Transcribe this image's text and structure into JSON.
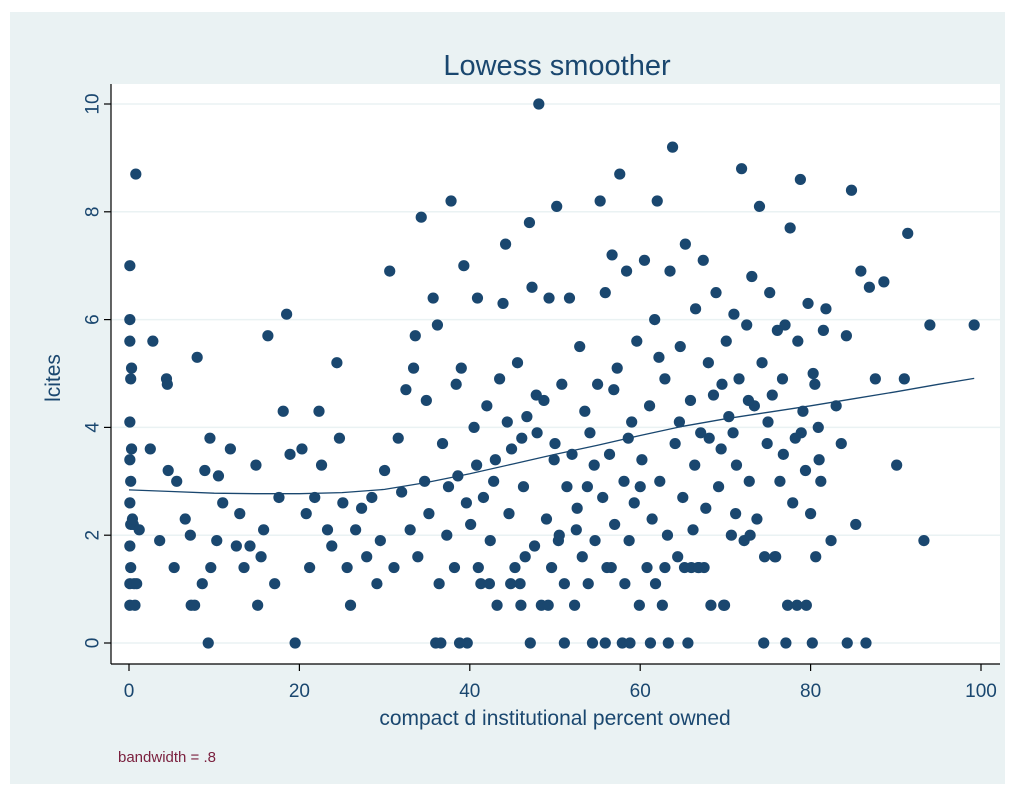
{
  "chart_data": {
    "type": "scatter",
    "title": "Lowess smoother",
    "xlabel": "compact d institutional percent owned",
    "ylabel": "lcites",
    "note": "bandwidth = .8",
    "xlim": [
      -2,
      101
    ],
    "ylim": [
      -0.3,
      10.2
    ],
    "xticks": [
      0,
      20,
      40,
      60,
      80,
      100
    ],
    "yticks": [
      0,
      2,
      4,
      6,
      8,
      10
    ],
    "grid": true,
    "colors": {
      "background": "#eaf2f3",
      "plot_region": "#ffffff",
      "marker": "#1a476f",
      "text": "#1a476f",
      "note_text": "#7a1f3d",
      "grid": "#eaf2f3"
    },
    "points": [
      [
        0.1,
        0.7
      ],
      [
        0.1,
        1.1
      ],
      [
        0.2,
        1.4
      ],
      [
        0.1,
        1.8
      ],
      [
        0.2,
        2.2
      ],
      [
        0.1,
        2.6
      ],
      [
        0.2,
        3.0
      ],
      [
        0.1,
        3.4
      ],
      [
        0.3,
        3.6
      ],
      [
        0.1,
        4.1
      ],
      [
        0.2,
        4.9
      ],
      [
        0.3,
        5.1
      ],
      [
        0.1,
        5.6
      ],
      [
        0.1,
        6.0
      ],
      [
        0.1,
        7.0
      ],
      [
        0.8,
        8.7
      ],
      [
        0.5,
        2.2
      ],
      [
        0.6,
        1.1
      ],
      [
        0.7,
        0.7
      ],
      [
        0.4,
        2.3
      ],
      [
        1.2,
        2.1
      ],
      [
        0.9,
        1.1
      ],
      [
        2.5,
        3.6
      ],
      [
        2.8,
        5.6
      ],
      [
        3.6,
        1.9
      ],
      [
        4.4,
        4.9
      ],
      [
        4.5,
        4.8
      ],
      [
        4.6,
        3.2
      ],
      [
        5.3,
        1.4
      ],
      [
        5.6,
        3.0
      ],
      [
        6.6,
        2.3
      ],
      [
        7.2,
        2.0
      ],
      [
        7.3,
        0.7
      ],
      [
        7.7,
        0.7
      ],
      [
        8.0,
        5.3
      ],
      [
        8.6,
        1.1
      ],
      [
        8.9,
        3.2
      ],
      [
        9.3,
        0.0
      ],
      [
        9.5,
        3.8
      ],
      [
        9.6,
        1.4
      ],
      [
        10.3,
        1.9
      ],
      [
        10.5,
        3.1
      ],
      [
        11.0,
        2.6
      ],
      [
        11.9,
        3.6
      ],
      [
        12.6,
        1.8
      ],
      [
        13.0,
        2.4
      ],
      [
        13.5,
        1.4
      ],
      [
        14.2,
        1.8
      ],
      [
        14.9,
        3.3
      ],
      [
        15.1,
        0.7
      ],
      [
        15.5,
        1.6
      ],
      [
        15.8,
        2.1
      ],
      [
        16.3,
        5.7
      ],
      [
        17.1,
        1.1
      ],
      [
        17.6,
        2.7
      ],
      [
        18.1,
        4.3
      ],
      [
        18.5,
        6.1
      ],
      [
        18.9,
        3.5
      ],
      [
        19.5,
        0.0
      ],
      [
        20.3,
        3.6
      ],
      [
        20.8,
        2.4
      ],
      [
        21.2,
        1.4
      ],
      [
        21.8,
        2.7
      ],
      [
        22.3,
        4.3
      ],
      [
        22.6,
        3.3
      ],
      [
        23.3,
        2.1
      ],
      [
        23.8,
        1.8
      ],
      [
        24.4,
        5.2
      ],
      [
        24.7,
        3.8
      ],
      [
        25.1,
        2.6
      ],
      [
        25.6,
        1.4
      ],
      [
        26.0,
        0.7
      ],
      [
        26.6,
        2.1
      ],
      [
        27.3,
        2.5
      ],
      [
        27.9,
        1.6
      ],
      [
        28.5,
        2.7
      ],
      [
        29.1,
        1.1
      ],
      [
        29.5,
        1.9
      ],
      [
        30.0,
        3.2
      ],
      [
        30.6,
        6.9
      ],
      [
        31.1,
        1.4
      ],
      [
        31.6,
        3.8
      ],
      [
        32.0,
        2.8
      ],
      [
        32.5,
        4.7
      ],
      [
        33.0,
        2.1
      ],
      [
        33.4,
        5.1
      ],
      [
        33.9,
        1.6
      ],
      [
        34.3,
        7.9
      ],
      [
        34.7,
        3.0
      ],
      [
        35.2,
        2.4
      ],
      [
        35.7,
        6.4
      ],
      [
        36.0,
        0.0
      ],
      [
        36.4,
        1.1
      ],
      [
        36.8,
        3.7
      ],
      [
        37.3,
        2.0
      ],
      [
        37.8,
        8.2
      ],
      [
        38.2,
        1.4
      ],
      [
        38.6,
        3.1
      ],
      [
        39.0,
        5.1
      ],
      [
        39.3,
        7.0
      ],
      [
        39.7,
        0.0
      ],
      [
        40.1,
        2.2
      ],
      [
        40.5,
        4.0
      ],
      [
        40.9,
        6.4
      ],
      [
        41.3,
        1.1
      ],
      [
        41.6,
        2.7
      ],
      [
        42.0,
        4.4
      ],
      [
        42.4,
        1.9
      ],
      [
        42.8,
        3.0
      ],
      [
        43.2,
        0.7
      ],
      [
        43.5,
        4.9
      ],
      [
        43.9,
        6.3
      ],
      [
        44.2,
        7.4
      ],
      [
        44.6,
        2.4
      ],
      [
        44.9,
        3.6
      ],
      [
        45.3,
        1.4
      ],
      [
        45.6,
        5.2
      ],
      [
        46.0,
        0.7
      ],
      [
        46.3,
        2.9
      ],
      [
        46.7,
        4.2
      ],
      [
        47.0,
        7.8
      ],
      [
        47.3,
        6.6
      ],
      [
        47.6,
        1.8
      ],
      [
        47.9,
        3.9
      ],
      [
        48.1,
        10.0
      ],
      [
        48.4,
        0.7
      ],
      [
        48.7,
        4.5
      ],
      [
        49.0,
        2.3
      ],
      [
        49.3,
        6.4
      ],
      [
        49.6,
        1.4
      ],
      [
        49.9,
        3.4
      ],
      [
        50.2,
        8.1
      ],
      [
        50.5,
        2.0
      ],
      [
        50.8,
        4.8
      ],
      [
        51.1,
        1.1
      ],
      [
        51.4,
        2.9
      ],
      [
        51.7,
        6.4
      ],
      [
        52.0,
        3.5
      ],
      [
        52.3,
        0.7
      ],
      [
        52.6,
        2.5
      ],
      [
        52.9,
        5.5
      ],
      [
        53.2,
        1.6
      ],
      [
        53.5,
        4.3
      ],
      [
        53.8,
        2.9
      ],
      [
        54.1,
        3.9
      ],
      [
        54.4,
        0.0
      ],
      [
        54.7,
        1.9
      ],
      [
        55.0,
        4.8
      ],
      [
        55.3,
        8.2
      ],
      [
        55.6,
        2.7
      ],
      [
        55.9,
        6.5
      ],
      [
        56.1,
        1.4
      ],
      [
        56.4,
        3.5
      ],
      [
        56.7,
        7.2
      ],
      [
        57.0,
        2.2
      ],
      [
        57.3,
        5.1
      ],
      [
        57.6,
        8.7
      ],
      [
        57.9,
        0.0
      ],
      [
        58.1,
        3.0
      ],
      [
        58.4,
        6.9
      ],
      [
        58.7,
        1.9
      ],
      [
        59.0,
        4.1
      ],
      [
        59.3,
        2.6
      ],
      [
        59.6,
        5.6
      ],
      [
        59.9,
        0.7
      ],
      [
        60.2,
        3.4
      ],
      [
        60.5,
        7.1
      ],
      [
        60.8,
        1.4
      ],
      [
        61.1,
        4.4
      ],
      [
        61.4,
        2.3
      ],
      [
        61.7,
        6.0
      ],
      [
        62.0,
        8.2
      ],
      [
        62.3,
        3.0
      ],
      [
        62.6,
        0.7
      ],
      [
        62.9,
        4.9
      ],
      [
        63.2,
        2.0
      ],
      [
        63.5,
        6.9
      ],
      [
        63.8,
        9.2
      ],
      [
        64.1,
        3.7
      ],
      [
        64.4,
        1.6
      ],
      [
        64.7,
        5.5
      ],
      [
        65.0,
        2.7
      ],
      [
        65.3,
        7.4
      ],
      [
        65.6,
        0.0
      ],
      [
        65.9,
        4.5
      ],
      [
        66.2,
        2.1
      ],
      [
        66.5,
        6.2
      ],
      [
        66.8,
        1.4
      ],
      [
        67.1,
        3.9
      ],
      [
        67.4,
        7.1
      ],
      [
        67.7,
        2.5
      ],
      [
        68.0,
        5.2
      ],
      [
        68.3,
        0.7
      ],
      [
        68.6,
        4.6
      ],
      [
        68.9,
        6.5
      ],
      [
        69.2,
        2.9
      ],
      [
        69.5,
        3.6
      ],
      [
        69.8,
        0.7
      ],
      [
        70.1,
        5.6
      ],
      [
        70.4,
        4.2
      ],
      [
        70.7,
        2.0
      ],
      [
        71.0,
        6.1
      ],
      [
        71.3,
        3.3
      ],
      [
        71.6,
        4.9
      ],
      [
        71.9,
        8.8
      ],
      [
        72.2,
        1.9
      ],
      [
        72.5,
        5.9
      ],
      [
        72.8,
        3.0
      ],
      [
        73.1,
        6.8
      ],
      [
        73.4,
        4.4
      ],
      [
        73.7,
        2.3
      ],
      [
        74.0,
        8.1
      ],
      [
        74.3,
        5.2
      ],
      [
        74.6,
        1.6
      ],
      [
        74.9,
        3.7
      ],
      [
        75.2,
        6.5
      ],
      [
        75.5,
        4.6
      ],
      [
        75.8,
        1.6
      ],
      [
        76.1,
        5.8
      ],
      [
        76.4,
        3.0
      ],
      [
        76.7,
        4.9
      ],
      [
        77.0,
        5.9
      ],
      [
        77.3,
        0.7
      ],
      [
        77.6,
        7.7
      ],
      [
        77.9,
        2.6
      ],
      [
        78.2,
        3.8
      ],
      [
        78.5,
        5.6
      ],
      [
        78.8,
        8.6
      ],
      [
        79.1,
        4.3
      ],
      [
        79.4,
        3.2
      ],
      [
        79.7,
        6.3
      ],
      [
        80.0,
        2.4
      ],
      [
        80.3,
        5.0
      ],
      [
        80.6,
        1.6
      ],
      [
        80.9,
        4.0
      ],
      [
        81.2,
        3.0
      ],
      [
        81.5,
        5.8
      ],
      [
        81.8,
        6.2
      ],
      [
        82.4,
        1.9
      ],
      [
        83.0,
        4.4
      ],
      [
        83.6,
        3.7
      ],
      [
        84.2,
        5.7
      ],
      [
        84.8,
        8.4
      ],
      [
        85.3,
        2.2
      ],
      [
        85.9,
        6.9
      ],
      [
        86.5,
        0.0
      ],
      [
        86.9,
        6.6
      ],
      [
        87.6,
        4.9
      ],
      [
        88.6,
        6.7
      ],
      [
        90.1,
        3.3
      ],
      [
        91.0,
        4.9
      ],
      [
        91.4,
        7.6
      ],
      [
        93.3,
        1.9
      ],
      [
        94.0,
        5.9
      ],
      [
        99.2,
        5.9
      ],
      [
        84.3,
        0.0
      ],
      [
        80.2,
        0.0
      ],
      [
        77.1,
        0.0
      ],
      [
        74.5,
        0.0
      ],
      [
        63.3,
        0.0
      ],
      [
        61.2,
        0.0
      ],
      [
        58.8,
        0.0
      ],
      [
        55.9,
        0.0
      ],
      [
        51.1,
        0.0
      ],
      [
        47.1,
        0.0
      ],
      [
        38.8,
        0.0
      ],
      [
        36.6,
        0.0
      ],
      [
        41.0,
        1.4
      ],
      [
        42.3,
        1.1
      ],
      [
        44.8,
        1.1
      ],
      [
        45.9,
        1.1
      ],
      [
        46.5,
        1.6
      ],
      [
        49.2,
        0.7
      ],
      [
        50.4,
        1.9
      ],
      [
        53.9,
        1.1
      ],
      [
        56.6,
        1.4
      ],
      [
        58.2,
        1.1
      ],
      [
        61.8,
        1.1
      ],
      [
        62.9,
        1.4
      ],
      [
        65.2,
        1.4
      ],
      [
        66.0,
        1.4
      ],
      [
        66.9,
        1.4
      ],
      [
        67.5,
        1.4
      ],
      [
        69.9,
        0.7
      ],
      [
        71.2,
        2.4
      ],
      [
        72.9,
        2.0
      ],
      [
        75.9,
        1.6
      ],
      [
        78.4,
        0.7
      ],
      [
        79.5,
        0.7
      ],
      [
        81.0,
        3.4
      ],
      [
        33.6,
        5.7
      ],
      [
        34.9,
        4.5
      ],
      [
        36.2,
        5.9
      ],
      [
        37.5,
        2.9
      ],
      [
        38.4,
        4.8
      ],
      [
        39.6,
        2.6
      ],
      [
        40.8,
        3.3
      ],
      [
        43.0,
        3.4
      ],
      [
        44.4,
        4.1
      ],
      [
        46.1,
        3.8
      ],
      [
        47.8,
        4.6
      ],
      [
        50.0,
        3.7
      ],
      [
        52.5,
        2.1
      ],
      [
        54.6,
        3.3
      ],
      [
        56.9,
        4.7
      ],
      [
        58.6,
        3.8
      ],
      [
        60.0,
        2.9
      ],
      [
        62.2,
        5.3
      ],
      [
        64.6,
        4.1
      ],
      [
        66.4,
        3.3
      ],
      [
        68.1,
        3.8
      ],
      [
        69.6,
        4.8
      ],
      [
        70.9,
        3.9
      ],
      [
        72.7,
        4.5
      ],
      [
        75.0,
        4.1
      ],
      [
        76.8,
        3.5
      ],
      [
        78.9,
        3.9
      ],
      [
        80.5,
        4.8
      ]
    ],
    "lowess": [
      [
        0,
        2.84
      ],
      [
        5,
        2.81
      ],
      [
        10,
        2.78
      ],
      [
        15,
        2.77
      ],
      [
        20,
        2.77
      ],
      [
        25,
        2.79
      ],
      [
        30,
        2.85
      ],
      [
        35,
        2.98
      ],
      [
        40,
        3.14
      ],
      [
        45,
        3.32
      ],
      [
        50,
        3.5
      ],
      [
        55,
        3.67
      ],
      [
        60,
        3.85
      ],
      [
        65,
        4.02
      ],
      [
        70,
        4.16
      ],
      [
        75,
        4.28
      ],
      [
        80,
        4.4
      ],
      [
        85,
        4.53
      ],
      [
        90,
        4.66
      ],
      [
        95,
        4.8
      ],
      [
        99.2,
        4.91
      ]
    ]
  }
}
